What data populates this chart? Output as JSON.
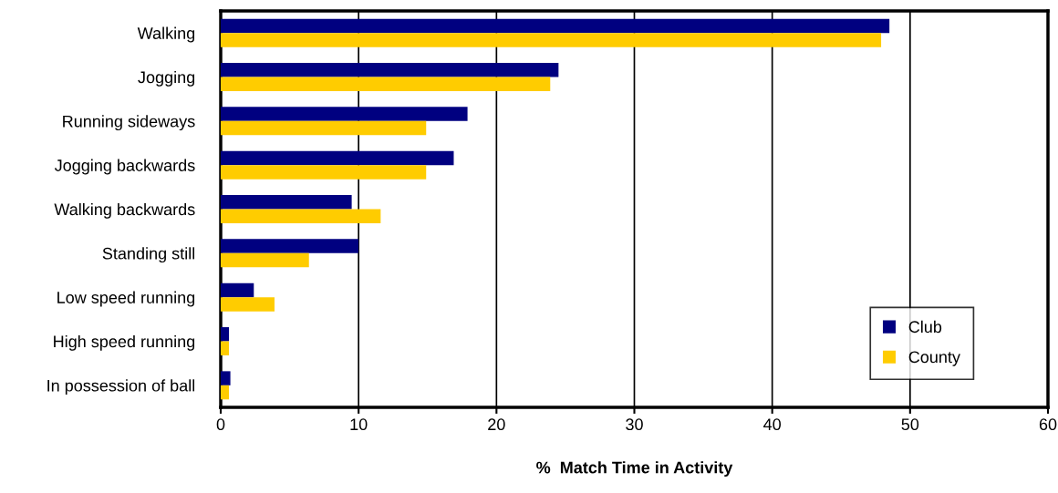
{
  "chart_data": {
    "type": "bar",
    "orientation": "horizontal",
    "xlabel": "%  Match Time in Activity",
    "categories": [
      "Walking",
      "Jogging",
      "Running sideways",
      "Jogging backwards",
      "Walking backwards",
      "Standing still",
      "Low speed running",
      "High speed running",
      "In possession of ball"
    ],
    "series": [
      {
        "name": "Club",
        "color": "#000080",
        "values": [
          48.5,
          24.5,
          17.9,
          16.9,
          9.5,
          10.0,
          2.4,
          0.6,
          0.7
        ]
      },
      {
        "name": "County",
        "color": "#ffcc00",
        "values": [
          47.9,
          23.9,
          14.9,
          14.9,
          11.6,
          6.4,
          3.9,
          0.6,
          0.6
        ]
      }
    ],
    "xlim": [
      0,
      60
    ],
    "xticks": [
      0,
      10,
      20,
      30,
      40,
      50,
      60
    ],
    "grid": "x",
    "legend": "bottom right"
  }
}
